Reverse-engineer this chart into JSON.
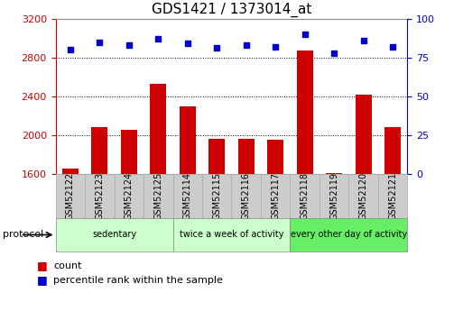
{
  "title": "GDS1421 / 1373014_at",
  "samples": [
    "GSM52122",
    "GSM52123",
    "GSM52124",
    "GSM52125",
    "GSM52114",
    "GSM52115",
    "GSM52116",
    "GSM52117",
    "GSM52118",
    "GSM52119",
    "GSM52120",
    "GSM52121"
  ],
  "counts": [
    1660,
    2080,
    2060,
    2530,
    2300,
    1960,
    1960,
    1950,
    2870,
    1610,
    2420,
    2080
  ],
  "percentile_ranks": [
    80,
    85,
    83,
    87,
    84,
    81,
    83,
    82,
    90,
    78,
    86,
    82
  ],
  "ylim_left": [
    1600,
    3200
  ],
  "ylim_right": [
    0,
    100
  ],
  "yticks_left": [
    1600,
    2000,
    2400,
    2800,
    3200
  ],
  "yticks_right": [
    0,
    25,
    50,
    75,
    100
  ],
  "bar_color": "#cc0000",
  "dot_color": "#0000cc",
  "group_defs": [
    {
      "start": 0,
      "end": 4,
      "label": "sedentary",
      "color": "#ccffcc"
    },
    {
      "start": 4,
      "end": 8,
      "label": "twice a week of activity",
      "color": "#ccffcc"
    },
    {
      "start": 8,
      "end": 12,
      "label": "every other day of activity",
      "color": "#66ee66"
    }
  ],
  "sample_box_color": "#cccccc",
  "sample_box_edge": "#aaaaaa",
  "protocol_label": "protocol",
  "legend_count_label": "count",
  "legend_pct_label": "percentile rank within the sample",
  "background_color": "#ffffff",
  "left_axis_color": "#cc0000",
  "right_axis_color": "#0000cc",
  "title_fontsize": 11,
  "tick_fontsize": 8,
  "label_fontsize": 7
}
